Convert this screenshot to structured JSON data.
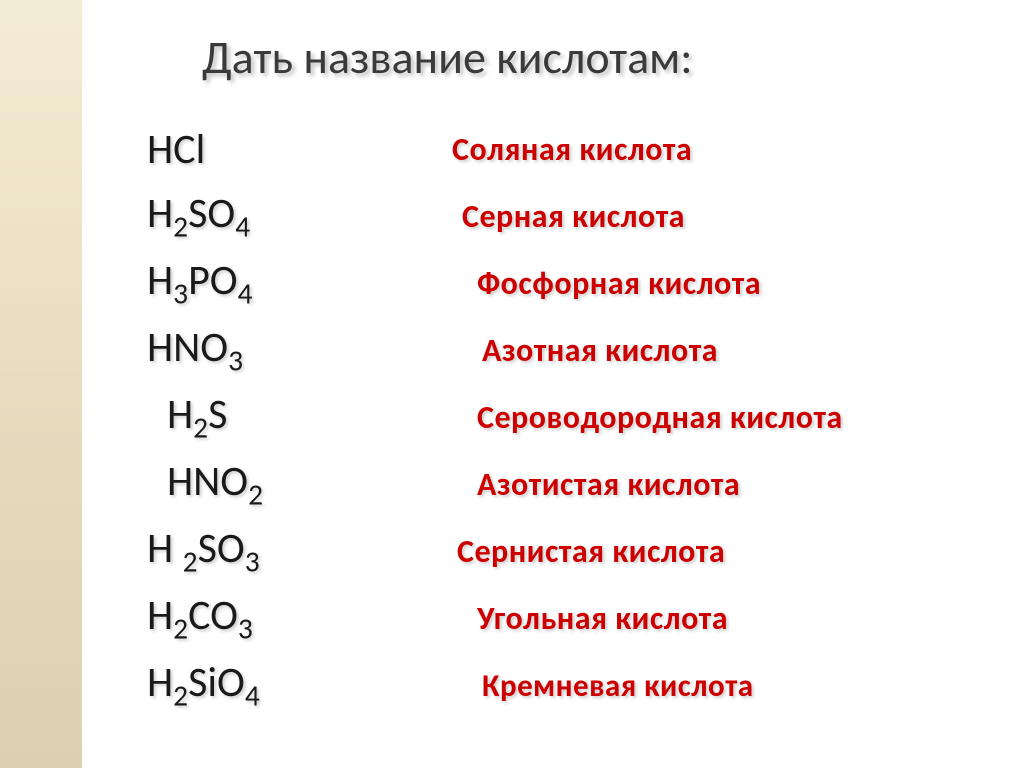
{
  "title": "Дать название кислотам:",
  "title_color": "#3a3a3a",
  "title_fontsize": 46,
  "name_color": "#cc0000",
  "formula_color": "#1a1a1a",
  "formula_fontsize": 42,
  "name_fontsize": 32,
  "background_color": "#ffffff",
  "sidebar_gradient": [
    "#f5ecd4",
    "#e8dcc0",
    "#ddd0b0"
  ],
  "rows": [
    {
      "formula_html": "HCl",
      "name": "Соляная кислота"
    },
    {
      "formula_html": "H<sub>2</sub>SO<sub>4</sub>",
      "name": "Серная кислота"
    },
    {
      "formula_html": "H<sub>3</sub>PO<sub>4</sub>",
      "name": "Фосфорная кислота"
    },
    {
      "formula_html": "HNO<sub>3</sub>",
      "name": "Азотная кислота"
    },
    {
      "formula_html": "H<sub>2</sub>S",
      "name": "Сероводородная кислота"
    },
    {
      "formula_html": "HNO<sub>2</sub>",
      "name": "Азотистая кислота"
    },
    {
      "formula_html": "H <sub>2</sub>SO<sub>3</sub>",
      "name": "Сернистая кислота"
    },
    {
      "formula_html": "H<sub>2</sub>CO<sub>3</sub>",
      "name": "Угольная кислота"
    },
    {
      "formula_html": "H<sub>2</sub>SiO<sub>4</sub>",
      "name": "Кремневая кислота"
    }
  ]
}
